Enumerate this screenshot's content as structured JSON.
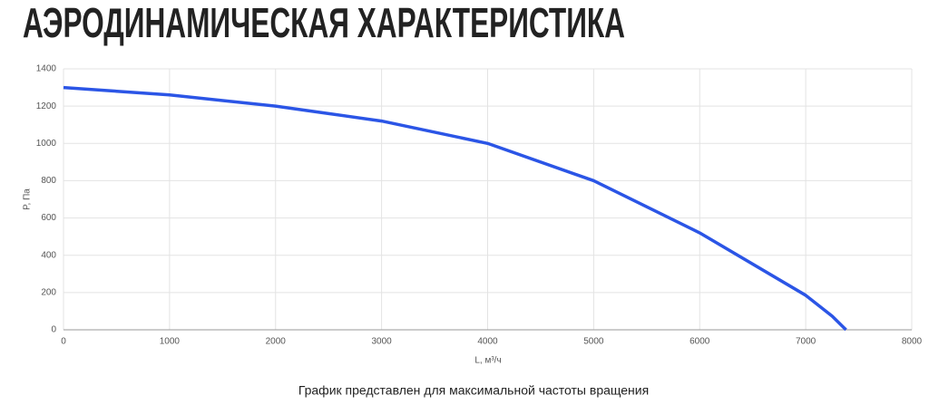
{
  "chart_data": {
    "type": "line",
    "title": "АЭРОДИНАМИЧЕСКАЯ ХАРАКТЕРИСТИКА",
    "x_label": "L, м³/ч",
    "y_label": "P, Па",
    "footnote": "График представлен для максимальной частоты вращения",
    "x": [
      0,
      1000,
      2000,
      3000,
      4000,
      5000,
      6000,
      7000,
      7250,
      7380
    ],
    "series": [
      {
        "name": "P",
        "color": "#2b55e6",
        "values": [
          1300,
          1260,
          1200,
          1120,
          1000,
          800,
          520,
          185,
          73,
          0
        ]
      }
    ],
    "xlim": [
      0,
      8000
    ],
    "xticks": [
      0,
      1000,
      2000,
      3000,
      4000,
      5000,
      6000,
      7000,
      8000
    ],
    "ylim": [
      0,
      1400
    ],
    "yticks": [
      0,
      200,
      400,
      600,
      800,
      1000,
      1200,
      1400
    ],
    "grid": true
  }
}
